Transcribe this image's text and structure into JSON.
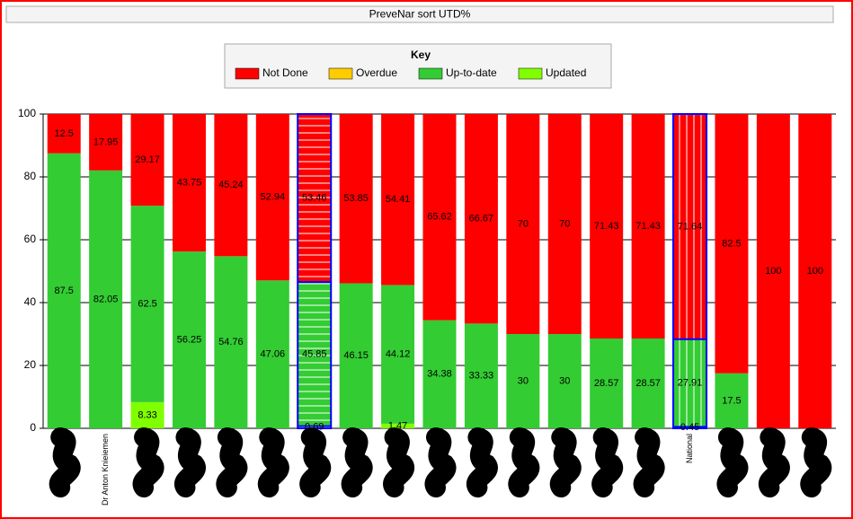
{
  "chart_data": {
    "type": "stacked_bar",
    "title": "PreveNar sort UTD%",
    "legend_title": "Key",
    "categories": [
      null,
      "Dr Anton Knieiemen",
      null,
      null,
      null,
      null,
      null,
      null,
      null,
      null,
      null,
      null,
      null,
      null,
      null,
      "National",
      null,
      null,
      null
    ],
    "series": [
      {
        "name": "Updated",
        "color": "#80ff00",
        "values": [
          null,
          null,
          8.33,
          null,
          null,
          null,
          0.69,
          null,
          1.47,
          null,
          null,
          null,
          null,
          null,
          null,
          0.45,
          null,
          null,
          null
        ]
      },
      {
        "name": "Up-to-date",
        "color": "#33cc33",
        "values": [
          87.5,
          82.05,
          62.5,
          56.25,
          54.76,
          47.06,
          45.85,
          46.15,
          44.12,
          34.38,
          33.33,
          30,
          30,
          28.57,
          28.57,
          27.91,
          17.5,
          null,
          null
        ]
      },
      {
        "name": "Overdue",
        "color": "#ffcc00",
        "values": [
          null,
          null,
          null,
          null,
          null,
          null,
          null,
          null,
          null,
          null,
          null,
          null,
          null,
          null,
          null,
          null,
          null,
          null,
          null
        ]
      },
      {
        "name": "Not Done",
        "color": "#ff0000",
        "values": [
          12.5,
          17.95,
          29.17,
          43.75,
          45.24,
          52.94,
          53.46,
          53.85,
          54.41,
          65.62,
          66.67,
          70,
          70,
          71.43,
          71.43,
          71.64,
          82.5,
          100,
          100
        ]
      }
    ],
    "legend_order": [
      3,
      2,
      1,
      0
    ],
    "highlight": [
      6,
      15
    ],
    "highlight_color": "#0000ff",
    "ylim": [
      0,
      100
    ],
    "yticks": [
      0,
      20,
      40,
      60,
      80,
      100
    ],
    "grid": true
  }
}
